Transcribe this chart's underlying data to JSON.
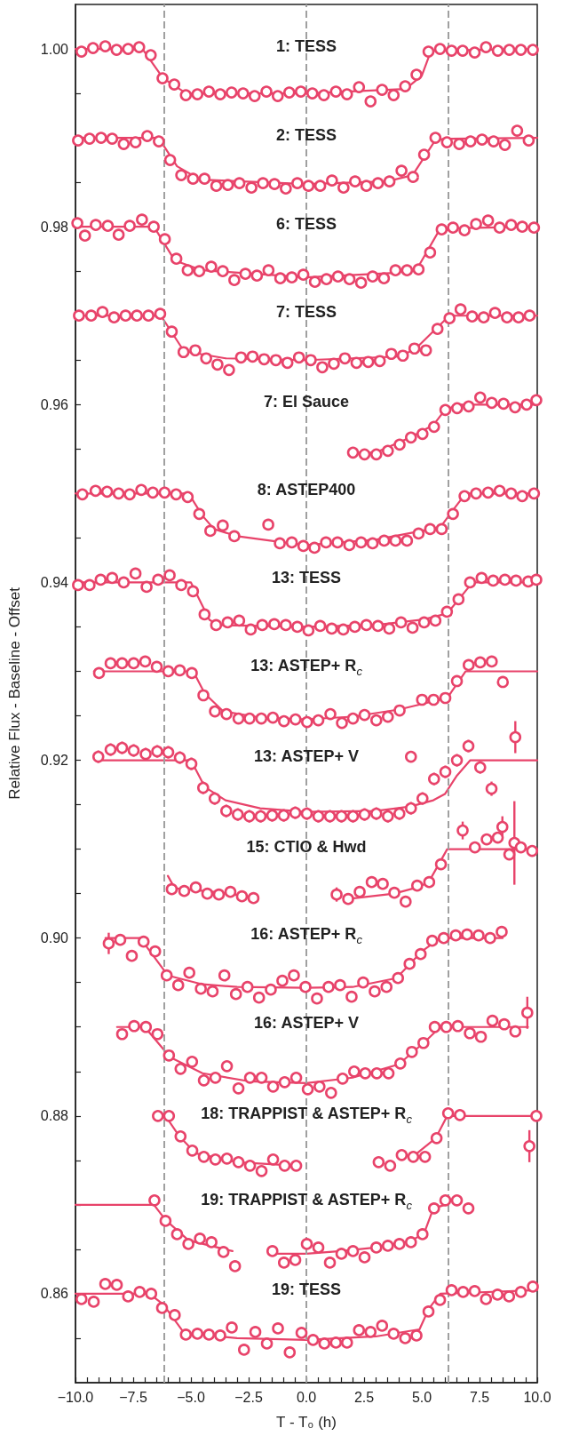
{
  "chart_data": {
    "type": "scatter",
    "xlabel": "T - T₀ (h)",
    "ylabel": "Relative Flux - Baseline - Offset",
    "xlim": [
      -10,
      10
    ],
    "ylim": [
      0.85,
      1.005
    ],
    "xticks": [
      {
        "value": -10,
        "label": "−10.0"
      },
      {
        "value": -9.5,
        "label": null
      },
      {
        "value": -9,
        "label": null
      },
      {
        "value": -8.5,
        "label": null
      },
      {
        "value": -8,
        "label": null
      },
      {
        "value": -7.5,
        "label": "−7.5"
      },
      {
        "value": -7,
        "label": null
      },
      {
        "value": -6.5,
        "label": null
      },
      {
        "value": -6,
        "label": null
      },
      {
        "value": -5.5,
        "label": null
      },
      {
        "value": -5,
        "label": "−5.0"
      },
      {
        "value": -4.5,
        "label": null
      },
      {
        "value": -4,
        "label": null
      },
      {
        "value": -3.5,
        "label": null
      },
      {
        "value": -3,
        "label": null
      },
      {
        "value": -2.5,
        "label": "−2.5"
      },
      {
        "value": -2,
        "label": null
      },
      {
        "value": -1.5,
        "label": null
      },
      {
        "value": -1,
        "label": null
      },
      {
        "value": -0.5,
        "label": null
      },
      {
        "value": 0,
        "label": "0.0"
      },
      {
        "value": 0.5,
        "label": null
      },
      {
        "value": 1,
        "label": null
      },
      {
        "value": 1.5,
        "label": null
      },
      {
        "value": 2,
        "label": null
      },
      {
        "value": 2.5,
        "label": "2.5"
      },
      {
        "value": 3,
        "label": null
      },
      {
        "value": 3.5,
        "label": null
      },
      {
        "value": 4,
        "label": null
      },
      {
        "value": 4.5,
        "label": null
      },
      {
        "value": 5,
        "label": "5.0"
      },
      {
        "value": 5.5,
        "label": null
      },
      {
        "value": 6,
        "label": null
      },
      {
        "value": 6.5,
        "label": null
      },
      {
        "value": 7,
        "label": null
      },
      {
        "value": 7.5,
        "label": "7.5"
      },
      {
        "value": 8,
        "label": null
      },
      {
        "value": 8.5,
        "label": null
      },
      {
        "value": 9,
        "label": null
      },
      {
        "value": 9.5,
        "label": null
      },
      {
        "value": 10,
        "label": "10.0"
      }
    ],
    "yticks": [
      {
        "value": 0.855,
        "label": null
      },
      {
        "value": 0.86,
        "label": "0.86"
      },
      {
        "value": 0.865,
        "label": null
      },
      {
        "value": 0.87,
        "label": null
      },
      {
        "value": 0.875,
        "label": null
      },
      {
        "value": 0.88,
        "label": "0.88"
      },
      {
        "value": 0.885,
        "label": null
      },
      {
        "value": 0.89,
        "label": null
      },
      {
        "value": 0.895,
        "label": null
      },
      {
        "value": 0.9,
        "label": "0.90"
      },
      {
        "value": 0.905,
        "label": null
      },
      {
        "value": 0.91,
        "label": null
      },
      {
        "value": 0.915,
        "label": null
      },
      {
        "value": 0.92,
        "label": "0.92"
      },
      {
        "value": 0.925,
        "label": null
      },
      {
        "value": 0.93,
        "label": null
      },
      {
        "value": 0.935,
        "label": null
      },
      {
        "value": 0.94,
        "label": "0.94"
      },
      {
        "value": 0.945,
        "label": null
      },
      {
        "value": 0.95,
        "label": null
      },
      {
        "value": 0.955,
        "label": null
      },
      {
        "value": 0.96,
        "label": "0.96"
      },
      {
        "value": 0.965,
        "label": null
      },
      {
        "value": 0.97,
        "label": null
      },
      {
        "value": 0.975,
        "label": null
      },
      {
        "value": 0.98,
        "label": "0.98"
      },
      {
        "value": 0.985,
        "label": null
      },
      {
        "value": 0.99,
        "label": null
      },
      {
        "value": 0.995,
        "label": null
      },
      {
        "value": 1.0,
        "label": "1.00"
      }
    ],
    "marker": "circle",
    "ref_lines": [
      {
        "axis": "x",
        "value": -6.15,
        "color": "#a0a0a0",
        "line_style": "dashed"
      },
      {
        "axis": "x",
        "value": 0,
        "color": "#a0a0a0",
        "line_style": "dashed"
      },
      {
        "axis": "x",
        "value": 6.15,
        "color": "#a0a0a0",
        "line_style": "dashed"
      }
    ],
    "annotations": [
      {
        "text": "1: TESS",
        "y": 1.0001
      },
      {
        "text": "2: TESS",
        "y": 0.9901
      },
      {
        "text": "6: TESS",
        "y": 0.9801
      },
      {
        "text": "7: TESS",
        "y": 0.9702
      },
      {
        "text": "7: El Sauce",
        "y": 0.9601
      },
      {
        "text": "8: ASTEP400",
        "y": 0.9502
      },
      {
        "text": "13: TESS",
        "y": 0.9403
      },
      {
        "text": "13: ASTEP+ R$_{c}$",
        "y": 0.9304
      },
      {
        "text": "13: ASTEP+ V",
        "y": 0.9203
      },
      {
        "text": "15: CTIO & Hwd",
        "y": 0.9101
      },
      {
        "text": "16: ASTEP+ R$_{c}$",
        "y": 0.9003
      },
      {
        "text": "16: ASTEP+ V",
        "y": 0.8903
      },
      {
        "text": "18: TRAPPIST & ASTEP+ R$_{c}$",
        "y": 0.8801
      },
      {
        "text": "19: TRAPPIST & ASTEP+ R$_{c}$",
        "y": 0.8704
      },
      {
        "text": "19: TESS",
        "y": 0.8603
      }
    ],
    "series": [
      {
        "type": "line",
        "marker": "none",
        "color": "#e8436a",
        "x": [
          -10,
          -7.1,
          -6.2,
          -5.2,
          0,
          4.3,
          5.0,
          5.4,
          10
        ],
        "values": [
          1.0,
          1.0,
          0.9967,
          0.995,
          0.995,
          0.9955,
          0.997,
          0.9998,
          1.0
        ]
      },
      {
        "color": "#e8436a",
        "x": [
          -9.74,
          -9.24,
          -8.71,
          -8.22,
          -7.72,
          -7.24,
          -6.74,
          -6.23,
          -5.72,
          -5.22,
          -4.72,
          -4.22,
          -3.73,
          -3.24,
          -2.74,
          -2.24,
          -1.73,
          -1.24,
          -0.74,
          -0.24,
          0.26,
          0.76,
          1.28,
          1.76,
          2.28,
          2.78,
          3.28,
          3.78,
          4.28,
          4.77,
          5.29,
          5.79,
          6.29,
          6.77,
          7.29,
          7.78,
          8.29,
          8.79,
          9.29,
          9.81
        ],
        "values": [
          0.9997,
          1.0001,
          1.0003,
          0.9999,
          1.0,
          1.0002,
          0.9993,
          0.9967,
          0.996,
          0.9948,
          0.9949,
          0.9952,
          0.9949,
          0.9951,
          0.995,
          0.9947,
          0.9952,
          0.9947,
          0.9951,
          0.9952,
          0.995,
          0.9948,
          0.9952,
          0.9949,
          0.9957,
          0.9941,
          0.9954,
          0.9948,
          0.9958,
          0.9971,
          0.9997,
          1.0,
          0.9998,
          0.9998,
          0.9996,
          1.0002,
          0.9998,
          0.9999,
          0.9999,
          0.9999
        ]
      },
      {
        "type": "line",
        "marker": "none",
        "color": "#e8436a",
        "x": [
          -10,
          -6.4,
          -5.6,
          -4.6,
          0,
          3.5,
          4.6,
          5.6,
          6.2,
          10
        ],
        "values": [
          0.99,
          0.99,
          0.9868,
          0.9853,
          0.9848,
          0.9851,
          0.9858,
          0.9898,
          0.9899,
          0.99
        ]
      },
      {
        "color": "#e8436a",
        "x": [
          -9.89,
          -9.39,
          -8.89,
          -8.41,
          -7.91,
          -7.4,
          -6.89,
          -6.39,
          -5.9,
          -5.42,
          -4.91,
          -4.41,
          -3.9,
          -3.4,
          -2.9,
          -2.38,
          -1.88,
          -1.38,
          -0.89,
          -0.39,
          0.09,
          0.6,
          1.11,
          1.61,
          2.11,
          2.6,
          3.1,
          3.6,
          4.12,
          4.62,
          5.1,
          5.59,
          6.09,
          6.62,
          7.11,
          7.61,
          8.11,
          8.6,
          9.13,
          9.63
        ],
        "values": [
          0.9897,
          0.9899,
          0.99,
          0.9899,
          0.9893,
          0.9895,
          0.9902,
          0.9896,
          0.9875,
          0.9858,
          0.9854,
          0.9854,
          0.9846,
          0.9847,
          0.9849,
          0.9844,
          0.9849,
          0.9848,
          0.9843,
          0.9849,
          0.9846,
          0.9846,
          0.9852,
          0.9844,
          0.9851,
          0.9846,
          0.9849,
          0.9851,
          0.9863,
          0.9856,
          0.9881,
          0.99,
          0.9895,
          0.9893,
          0.9896,
          0.9898,
          0.9896,
          0.9892,
          0.9908,
          0.9897
        ]
      },
      {
        "type": "line",
        "marker": "none",
        "color": "#e8436a",
        "x": [
          -10,
          -6.6,
          -5.7,
          -4.5,
          0,
          3.8,
          4.8,
          5.8,
          10
        ],
        "values": [
          0.98,
          0.98,
          0.9762,
          0.9751,
          0.9743,
          0.9748,
          0.9753,
          0.9798,
          0.98
        ]
      },
      {
        "color": "#e8436a",
        "x": [
          -9.92,
          -9.59,
          -9.12,
          -8.6,
          -8.13,
          -7.65,
          -7.12,
          -6.61,
          -6.13,
          -5.63,
          -5.14,
          -4.64,
          -4.12,
          -3.62,
          -3.12,
          -2.64,
          -2.14,
          -1.64,
          -1.13,
          -0.63,
          -0.13,
          0.37,
          0.87,
          1.37,
          1.87,
          2.37,
          2.87,
          3.36,
          3.86,
          4.36,
          4.86,
          5.36,
          5.86,
          6.35,
          6.85,
          7.35,
          7.87,
          8.37,
          8.87,
          9.35,
          9.86
        ],
        "values": [
          0.9804,
          0.979,
          0.9802,
          0.9801,
          0.9791,
          0.9801,
          0.9808,
          0.98,
          0.9786,
          0.9764,
          0.9751,
          0.975,
          0.9755,
          0.975,
          0.974,
          0.9747,
          0.9745,
          0.9751,
          0.9742,
          0.9743,
          0.9746,
          0.9738,
          0.9741,
          0.9744,
          0.9741,
          0.9737,
          0.9744,
          0.9742,
          0.9751,
          0.9751,
          0.9752,
          0.9771,
          0.9797,
          0.9799,
          0.9796,
          0.9803,
          0.9807,
          0.9799,
          0.9802,
          0.98,
          0.9799
        ]
      },
      {
        "type": "line",
        "marker": "none",
        "color": "#e8436a",
        "x": [
          -10,
          -6.3,
          -5.3,
          -3.5,
          0,
          4,
          4.7,
          5.6,
          6.2,
          10
        ],
        "values": [
          0.97,
          0.97,
          0.966,
          0.9652,
          0.965,
          0.9654,
          0.9662,
          0.9685,
          0.97,
          0.97
        ]
      },
      {
        "color": "#e8436a",
        "x": [
          -9.85,
          -9.32,
          -8.83,
          -8.33,
          -7.83,
          -7.34,
          -6.84,
          -6.33,
          -5.83,
          -5.32,
          -4.81,
          -4.34,
          -3.85,
          -3.35,
          -2.83,
          -2.33,
          -1.83,
          -1.32,
          -0.82,
          -0.32,
          0.19,
          0.69,
          1.19,
          1.67,
          2.17,
          2.68,
          3.18,
          3.68,
          4.18,
          4.68,
          5.18,
          5.68,
          6.2,
          6.68,
          7.18,
          7.68,
          8.17,
          8.69,
          9.19,
          9.67
        ],
        "values": [
          0.97,
          0.97,
          0.9704,
          0.9698,
          0.97,
          0.97,
          0.97,
          0.9702,
          0.9682,
          0.9659,
          0.9661,
          0.9652,
          0.9645,
          0.9639,
          0.9653,
          0.9654,
          0.9651,
          0.965,
          0.9647,
          0.9653,
          0.965,
          0.9642,
          0.9646,
          0.9652,
          0.9647,
          0.9648,
          0.9649,
          0.9657,
          0.9655,
          0.9663,
          0.9661,
          0.9685,
          0.9697,
          0.9707,
          0.9699,
          0.9698,
          0.9703,
          0.9698,
          0.9698,
          0.97
        ]
      },
      {
        "type": "line",
        "marker": "none",
        "color": "#e8436a",
        "x": [
          2.0,
          3.0,
          4.5,
          5.5,
          6.0,
          6.6,
          10
        ],
        "values": [
          0.9546,
          0.9546,
          0.9563,
          0.9577,
          0.9594,
          0.96,
          0.96
        ]
      },
      {
        "color": "#e8436a",
        "x": [
          2.02,
          2.52,
          3.03,
          3.53,
          4.04,
          4.53,
          5.03,
          5.53,
          6.02,
          6.53,
          7.03,
          7.53,
          8.03,
          8.54,
          9.04,
          9.54,
          9.96
        ],
        "values": [
          0.9546,
          0.9544,
          0.9544,
          0.9548,
          0.9555,
          0.9563,
          0.9567,
          0.9575,
          0.9594,
          0.9596,
          0.9598,
          0.9608,
          0.9602,
          0.9601,
          0.9597,
          0.96,
          0.9605
        ]
      },
      {
        "type": "line",
        "marker": "none",
        "color": "#e8436a",
        "x": [
          -10,
          -5.1,
          -4.5,
          -4.0,
          -3.0,
          -1.0,
          0,
          3,
          5.0,
          5.8,
          6.4,
          6.9,
          10
        ],
        "values": [
          0.95,
          0.95,
          0.9475,
          0.946,
          0.9452,
          0.9445,
          0.9442,
          0.9448,
          0.9458,
          0.9462,
          0.9483,
          0.95,
          0.95
        ]
      },
      {
        "color": "#e8436a",
        "x": [
          -9.7,
          -9.13,
          -8.63,
          -8.13,
          -7.65,
          -7.15,
          -6.65,
          -6.14,
          -5.64,
          -5.14,
          -4.64,
          -4.16,
          -3.62,
          -3.12,
          -1.65,
          -1.15,
          -0.63,
          -0.13,
          0.35,
          0.85,
          1.35,
          1.86,
          2.37,
          2.87,
          3.37,
          3.86,
          4.36,
          4.86,
          5.36,
          5.86,
          6.35,
          6.85,
          7.35,
          7.87,
          8.37,
          8.87,
          9.35,
          9.86
        ],
        "values": [
          0.9499,
          0.9503,
          0.9502,
          0.95,
          0.9499,
          0.9504,
          0.9501,
          0.9501,
          0.9499,
          0.9496,
          0.9477,
          0.9458,
          0.9464,
          0.9452,
          0.9465,
          0.9444,
          0.9445,
          0.9441,
          0.9439,
          0.9445,
          0.9445,
          0.9442,
          0.9445,
          0.9444,
          0.9447,
          0.9447,
          0.9447,
          0.9455,
          0.946,
          0.946,
          0.9477,
          0.9497,
          0.95,
          0.9501,
          0.9503,
          0.95,
          0.9497,
          0.95
        ]
      },
      {
        "type": "line",
        "marker": "none",
        "color": "#e8436a",
        "x": [
          -10,
          -5.0,
          -4.2,
          -3.8,
          0,
          3,
          5,
          6.1,
          7.2,
          10
        ],
        "values": [
          0.94,
          0.94,
          0.9358,
          0.9352,
          0.935,
          0.9352,
          0.9358,
          0.9365,
          0.94,
          0.94
        ]
      },
      {
        "color": "#e8436a",
        "x": [
          -9.89,
          -9.39,
          -8.91,
          -8.41,
          -7.91,
          -7.4,
          -6.92,
          -6.42,
          -5.92,
          -5.42,
          -4.91,
          -4.41,
          -3.91,
          -3.41,
          -2.91,
          -2.41,
          -1.91,
          -1.39,
          -0.89,
          -0.39,
          0.09,
          0.6,
          1.1,
          1.6,
          2.1,
          2.6,
          3.1,
          3.59,
          4.1,
          4.6,
          5.1,
          5.59,
          6.09,
          6.59,
          7.09,
          7.59,
          8.09,
          8.6,
          9.08,
          9.61,
          9.96
        ],
        "values": [
          0.9397,
          0.9397,
          0.9403,
          0.9405,
          0.94,
          0.941,
          0.9395,
          0.9403,
          0.9408,
          0.9397,
          0.939,
          0.9364,
          0.9352,
          0.9355,
          0.9357,
          0.9347,
          0.9352,
          0.9353,
          0.9352,
          0.935,
          0.9346,
          0.9351,
          0.9348,
          0.9347,
          0.935,
          0.9352,
          0.9351,
          0.9348,
          0.9355,
          0.9349,
          0.9355,
          0.9357,
          0.9367,
          0.9381,
          0.94,
          0.9405,
          0.9402,
          0.9403,
          0.9402,
          0.9401,
          0.9403
        ]
      },
      {
        "type": "line",
        "marker": "none",
        "color": "#e8436a",
        "x": [
          -9.2,
          -4.9,
          -4.4,
          -3.6,
          -2,
          0,
          2,
          4,
          6.1,
          6.9,
          10
        ],
        "values": [
          0.93,
          0.93,
          0.9275,
          0.9255,
          0.9248,
          0.9246,
          0.9249,
          0.9257,
          0.927,
          0.93,
          0.93
        ]
      },
      {
        "color": "#e8436a",
        "x": [
          -8.98,
          -8.48,
          -7.98,
          -7.48,
          -6.98,
          -6.48,
          -5.98,
          -5.48,
          -4.96,
          -4.46,
          -3.96,
          -3.46,
          -2.94,
          -2.46,
          -1.95,
          -1.45,
          -0.97,
          -0.47,
          0.03,
          0.52,
          1.04,
          1.54,
          2.02,
          2.52,
          3.03,
          3.53,
          4.04,
          5.01,
          5.51,
          6.02,
          6.52,
          7.03,
          7.53,
          8.03,
          8.51
        ],
        "values": [
          0.9298,
          0.9309,
          0.9309,
          0.9309,
          0.9311,
          0.9305,
          0.93,
          0.9301,
          0.9298,
          0.9273,
          0.9255,
          0.9252,
          0.9247,
          0.9247,
          0.9247,
          0.9248,
          0.9244,
          0.9246,
          0.9243,
          0.9245,
          0.9252,
          0.9242,
          0.9247,
          0.9251,
          0.9245,
          0.9249,
          0.9256,
          0.9268,
          0.9268,
          0.927,
          0.9289,
          0.9307,
          0.931,
          0.9311,
          0.9288
        ]
      },
      {
        "type": "line",
        "marker": "none",
        "color": "#e8436a",
        "x": [
          -9.0,
          -5.0,
          -4.4,
          -3.5,
          -2,
          0,
          3,
          4.5,
          5.5,
          6.0,
          6.5,
          7.1,
          10
        ],
        "values": [
          0.92,
          0.92,
          0.917,
          0.9155,
          0.9146,
          0.9142,
          0.9143,
          0.9148,
          0.9155,
          0.9162,
          0.9182,
          0.92,
          0.92
        ]
      },
      {
        "color": "#e8436a",
        "x": [
          -9.01,
          -8.48,
          -7.98,
          -7.48,
          -6.96,
          -6.46,
          -5.98,
          -5.48,
          -4.98,
          -4.47,
          -3.97,
          -3.47,
          -2.97,
          -2.47,
          -1.98,
          -1.48,
          -0.98,
          -0.48,
          0.02,
          0.52,
          1.02,
          1.52,
          2.02,
          2.52,
          3.03,
          3.53,
          4.03,
          4.53,
          4.53,
          5.03,
          5.53,
          6.02,
          6.52,
          7.02,
          7.53,
          8.02,
          9.05
        ],
        "values": [
          0.9204,
          0.9212,
          0.9214,
          0.9211,
          0.9207,
          0.921,
          0.9209,
          0.9203,
          0.9196,
          0.9169,
          0.9157,
          0.9143,
          0.9139,
          0.9137,
          0.9137,
          0.9138,
          0.9138,
          0.9141,
          0.914,
          0.9137,
          0.9137,
          0.9137,
          0.9137,
          0.9139,
          0.914,
          0.9137,
          0.914,
          0.9146,
          0.9204,
          0.9157,
          0.9179,
          0.9187,
          0.92,
          0.9216,
          0.9192,
          0.9168,
          0.9226
        ],
        "errors": [
          0.0007,
          0.0007,
          0.0007,
          0.0007,
          0.0007,
          0.0007,
          0.0007,
          0.0007,
          0.0007,
          0.0007,
          0.0007,
          0.0007,
          0.0007,
          0.0007,
          0.0007,
          0.0007,
          0.0007,
          0.0007,
          0.0007,
          0.0007,
          0.0007,
          0.0007,
          0.0007,
          0.0007,
          0.0007,
          0.0007,
          0.0007,
          0.0007,
          null,
          0.0007,
          0.0007,
          0.0007,
          0.0007,
          0.0007,
          0.0007,
          0.0008,
          0.0018
        ]
      },
      {
        "type": "line",
        "marker": "none",
        "color": "#e8436a",
        "x": [
          -6.0,
          -5.7,
          -4.0,
          -2.3
        ],
        "values": [
          0.907,
          0.9056,
          0.9052,
          0.9046
        ]
      },
      {
        "type": "line",
        "marker": "none",
        "color": "#e8436a",
        "x": [
          1.8,
          3.8,
          4.8,
          5.3,
          6.1,
          10
        ],
        "values": [
          0.9044,
          0.905,
          0.9057,
          0.9063,
          0.91,
          0.91
        ]
      },
      {
        "color": "#e8436a",
        "x": [
          -5.83,
          -5.29,
          -4.79,
          -4.29,
          -3.79,
          -3.29,
          -2.79,
          -2.29,
          1.31,
          1.81,
          2.31,
          2.83,
          3.31,
          3.81,
          4.3,
          4.8,
          5.32,
          5.83,
          6.77,
          7.3,
          7.81,
          8.29,
          8.49,
          8.79,
          9.01,
          9.29,
          9.78
        ],
        "values": [
          0.9055,
          0.9053,
          0.9057,
          0.905,
          0.9049,
          0.9052,
          0.9047,
          0.9045,
          0.9049,
          0.9044,
          0.9052,
          0.9063,
          0.9061,
          0.9051,
          0.9041,
          0.9059,
          0.9063,
          0.9083,
          0.9121,
          0.9102,
          0.9111,
          0.9113,
          0.9125,
          0.9094,
          0.9107,
          0.9102,
          0.9098
        ],
        "errors": [
          null,
          null,
          null,
          null,
          null,
          null,
          null,
          null,
          0.0008,
          null,
          null,
          null,
          null,
          null,
          null,
          null,
          null,
          null,
          0.001,
          null,
          null,
          0.0006,
          0.0012,
          null,
          0.0047,
          null,
          null
        ]
      },
      {
        "type": "line",
        "marker": "none",
        "color": "#e8436a",
        "x": [
          -8.7,
          -7.2,
          -6.0,
          -4.5,
          -3,
          0,
          2,
          3.9,
          5.0,
          5.8,
          8.5
        ],
        "values": [
          0.9,
          0.9,
          0.8958,
          0.8948,
          0.8945,
          0.8944,
          0.8945,
          0.8955,
          0.8985,
          0.9,
          0.9
        ]
      },
      {
        "color": "#e8436a",
        "x": [
          -8.56,
          -8.06,
          -7.56,
          -7.05,
          -6.55,
          -6.05,
          -5.55,
          -5.07,
          -4.57,
          -4.06,
          -3.55,
          -3.05,
          -2.55,
          -2.05,
          -1.54,
          -1.04,
          -0.54,
          -0.04,
          0.46,
          0.96,
          1.46,
          1.96,
          2.46,
          2.96,
          3.47,
          3.97,
          4.47,
          4.95,
          5.45,
          5.95,
          6.47,
          6.96,
          7.46,
          7.96,
          8.46
        ],
        "values": [
          0.8994,
          0.8998,
          0.898,
          0.8996,
          0.8985,
          0.8958,
          0.8947,
          0.8961,
          0.8943,
          0.894,
          0.8958,
          0.8937,
          0.8945,
          0.8933,
          0.8942,
          0.8952,
          0.8958,
          0.8945,
          0.8932,
          0.8945,
          0.8947,
          0.8934,
          0.895,
          0.894,
          0.8945,
          0.8955,
          0.8971,
          0.8982,
          0.8997,
          0.9,
          0.9003,
          0.9004,
          0.9003,
          0.9,
          0.9007
        ],
        "errors": [
          0.0012,
          null,
          null,
          null,
          null,
          null,
          null,
          null,
          null,
          null,
          null,
          null,
          null,
          null,
          null,
          null,
          null,
          null,
          null,
          null,
          null,
          null,
          null,
          null,
          null,
          null,
          null,
          null,
          null,
          null,
          null,
          null,
          null,
          null,
          0.0006
        ]
      },
      {
        "type": "line",
        "marker": "none",
        "color": "#e8436a",
        "x": [
          -8.2,
          -7.0,
          -5.9,
          -4.5,
          -2.5,
          0,
          2,
          4,
          5.2,
          5.8,
          9.6
        ],
        "values": [
          0.89,
          0.89,
          0.8866,
          0.8848,
          0.8839,
          0.8837,
          0.8843,
          0.8858,
          0.8885,
          0.89,
          0.89
        ]
      },
      {
        "color": "#e8436a",
        "x": [
          -7.98,
          -7.46,
          -6.95,
          -6.45,
          -5.95,
          -5.45,
          -4.95,
          -4.44,
          -3.94,
          -3.44,
          -2.94,
          -2.44,
          -1.94,
          -1.44,
          -0.94,
          -0.44,
          0.06,
          0.57,
          1.07,
          1.57,
          2.07,
          2.55,
          3.05,
          3.56,
          4.07,
          4.57,
          5.07,
          5.56,
          6.06,
          6.56,
          7.08,
          7.56,
          8.06,
          8.57,
          9.05,
          9.57
        ],
        "values": [
          0.8892,
          0.8901,
          0.89,
          0.8892,
          0.8868,
          0.8853,
          0.8861,
          0.884,
          0.8843,
          0.8856,
          0.8831,
          0.8843,
          0.8843,
          0.8833,
          0.8838,
          0.8843,
          0.883,
          0.8833,
          0.8826,
          0.8842,
          0.885,
          0.8848,
          0.8848,
          0.8848,
          0.8859,
          0.8872,
          0.8882,
          0.89,
          0.89,
          0.8901,
          0.8893,
          0.8889,
          0.8907,
          0.8903,
          0.8895,
          0.8916
        ],
        "errors": [
          null,
          null,
          null,
          null,
          null,
          null,
          null,
          null,
          null,
          null,
          null,
          null,
          null,
          null,
          null,
          null,
          null,
          0.0005,
          null,
          null,
          null,
          null,
          null,
          null,
          null,
          null,
          null,
          null,
          null,
          null,
          null,
          null,
          null,
          null,
          null,
          0.0018
        ]
      },
      {
        "type": "line",
        "marker": "none",
        "color": "#e8436a",
        "x": [
          -6.1,
          -5.5,
          -4.8,
          -3,
          -0.4
        ],
        "values": [
          0.88,
          0.8777,
          0.8758,
          0.8748,
          0.8744
        ]
      },
      {
        "type": "line",
        "marker": "none",
        "color": "#e8436a",
        "x": [
          4.6,
          5.6,
          6.1,
          10
        ],
        "values": [
          0.8754,
          0.8775,
          0.88,
          0.88
        ]
      },
      {
        "color": "#e8436a",
        "x": [
          -6.43,
          -5.95,
          -5.45,
          -4.94,
          -4.44,
          -3.94,
          -3.44,
          -2.94,
          -2.44,
          -1.94,
          -1.44,
          -0.94,
          -0.44,
          3.13,
          3.63,
          4.13,
          4.63,
          5.14,
          5.64,
          6.14,
          6.65,
          9.66,
          9.96
        ],
        "values": [
          0.88,
          0.88,
          0.8777,
          0.8761,
          0.8754,
          0.8751,
          0.8752,
          0.8748,
          0.8744,
          0.8738,
          0.8751,
          0.8744,
          0.8744,
          0.8748,
          0.8744,
          0.8756,
          0.8754,
          0.8754,
          0.8775,
          0.8803,
          0.8801,
          0.8766,
          0.88
        ],
        "errors": [
          null,
          null,
          null,
          null,
          null,
          null,
          null,
          null,
          null,
          null,
          null,
          null,
          null,
          null,
          null,
          null,
          null,
          null,
          null,
          null,
          null,
          0.0018,
          null
        ]
      },
      {
        "type": "line",
        "marker": "none",
        "color": "#e8436a",
        "x": [
          -10,
          -6.6,
          -6.1,
          -5.1,
          -3.2
        ],
        "values": [
          0.87,
          0.87,
          0.8683,
          0.866,
          0.8648
        ]
      },
      {
        "type": "line",
        "marker": "none",
        "color": "#e8436a",
        "x": [
          -1.6,
          0,
          1.5,
          3,
          4.5,
          5.1,
          5.5,
          6.0
        ],
        "values": [
          0.8645,
          0.8645,
          0.8648,
          0.8652,
          0.8659,
          0.8668,
          0.8696,
          0.87
        ]
      },
      {
        "color": "#e8436a",
        "x": [
          -6.58,
          -6.1,
          -5.6,
          -5.11,
          -4.61,
          -4.11,
          -3.59,
          -3.09,
          -1.47,
          -0.97,
          -0.48,
          0.02,
          0.52,
          1.02,
          1.52,
          2.02,
          2.52,
          3.03,
          3.53,
          4.03,
          4.53,
          5.03,
          5.53,
          6.02,
          6.52,
          7.02
        ],
        "values": [
          0.8705,
          0.8682,
          0.8667,
          0.8656,
          0.8662,
          0.8658,
          0.8647,
          0.8631,
          0.8648,
          0.8635,
          0.8638,
          0.8656,
          0.8652,
          0.8635,
          0.8645,
          0.8648,
          0.8641,
          0.8652,
          0.8654,
          0.8656,
          0.8658,
          0.8667,
          0.8696,
          0.8705,
          0.8705,
          0.8696
        ]
      },
      {
        "type": "line",
        "marker": "none",
        "color": "#e8436a",
        "x": [
          -10,
          -6.8,
          -6.2,
          -5.3,
          -3,
          0,
          3,
          4.9,
          5.3,
          5.8,
          10
        ],
        "values": [
          0.86,
          0.86,
          0.8588,
          0.8556,
          0.855,
          0.8548,
          0.8552,
          0.856,
          0.8583,
          0.86,
          0.8604
        ]
      },
      {
        "color": "#e8436a",
        "x": [
          -9.74,
          -9.21,
          -8.71,
          -8.21,
          -7.72,
          -7.22,
          -6.72,
          -6.25,
          -5.7,
          -5.22,
          -4.72,
          -4.22,
          -3.73,
          -3.23,
          -2.7,
          -2.21,
          -1.71,
          -1.23,
          -0.72,
          -0.21,
          0.29,
          0.78,
          1.28,
          1.76,
          2.28,
          2.78,
          3.28,
          3.78,
          4.28,
          4.77,
          5.29,
          5.79,
          6.29,
          6.79,
          7.29,
          7.78,
          8.28,
          8.78,
          9.29,
          9.81
        ],
        "values": [
          0.8594,
          0.8591,
          0.8611,
          0.861,
          0.8597,
          0.8602,
          0.86,
          0.8584,
          0.8576,
          0.8554,
          0.8555,
          0.8554,
          0.8553,
          0.8562,
          0.8537,
          0.8557,
          0.8544,
          0.8561,
          0.8534,
          0.8556,
          0.8548,
          0.8544,
          0.8545,
          0.8545,
          0.8559,
          0.8557,
          0.8564,
          0.8555,
          0.855,
          0.8553,
          0.858,
          0.8593,
          0.8604,
          0.8602,
          0.8603,
          0.8594,
          0.8599,
          0.8597,
          0.8602,
          0.8608
        ]
      }
    ]
  }
}
